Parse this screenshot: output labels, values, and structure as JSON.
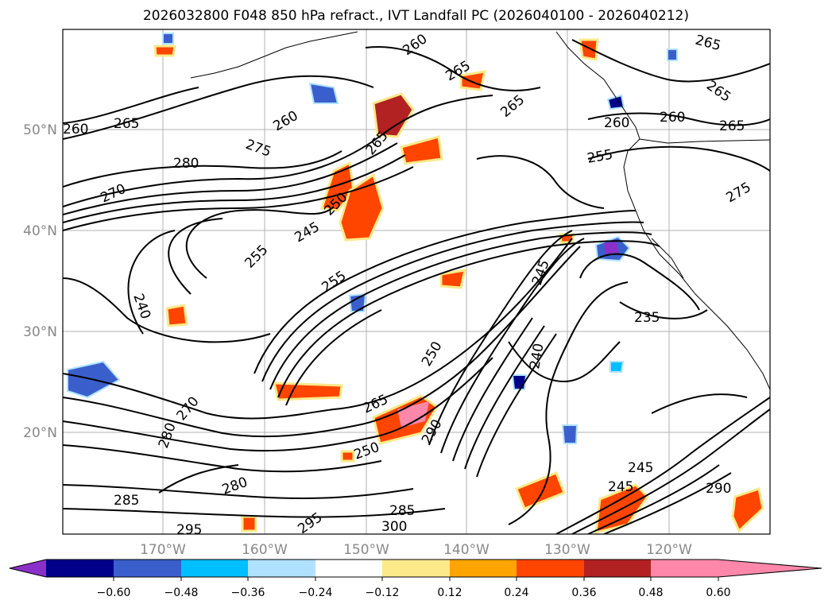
{
  "title": "2026032800 F048 850 hPa refract., IVT Landfall PC (2026040100 - 2026040212)",
  "map": {
    "lat_labels": [
      "50°N",
      "40°N",
      "30°N",
      "20°N"
    ],
    "lon_labels": [
      "170°W",
      "160°W",
      "150°W",
      "140°W",
      "130°W",
      "120°W"
    ],
    "contour_labels": [
      "260",
      "265",
      "260",
      "265",
      "265",
      "265",
      "265",
      "260",
      "260",
      "265",
      "280",
      "275",
      "270",
      "260",
      "255",
      "250",
      "245",
      "255",
      "265",
      "240",
      "255",
      "245",
      "235",
      "250",
      "240",
      "275",
      "280",
      "270",
      "265",
      "285",
      "280",
      "295",
      "285",
      "300",
      "295",
      "290",
      "245",
      "245",
      "290",
      "250"
    ]
  },
  "colorbar": {
    "colors": [
      "#8b2fc9",
      "#00008b",
      "#3a5fcd",
      "#00bfff",
      "#b0e2ff",
      "#ffffff",
      "#fbe98a",
      "#ffa500",
      "#ff4500",
      "#b22222",
      "#ff88aa"
    ],
    "ticks": [
      "−0.60",
      "−0.48",
      "−0.36",
      "−0.24",
      "−0.12",
      "0.12",
      "0.24",
      "0.36",
      "0.48",
      "0.60"
    ]
  }
}
